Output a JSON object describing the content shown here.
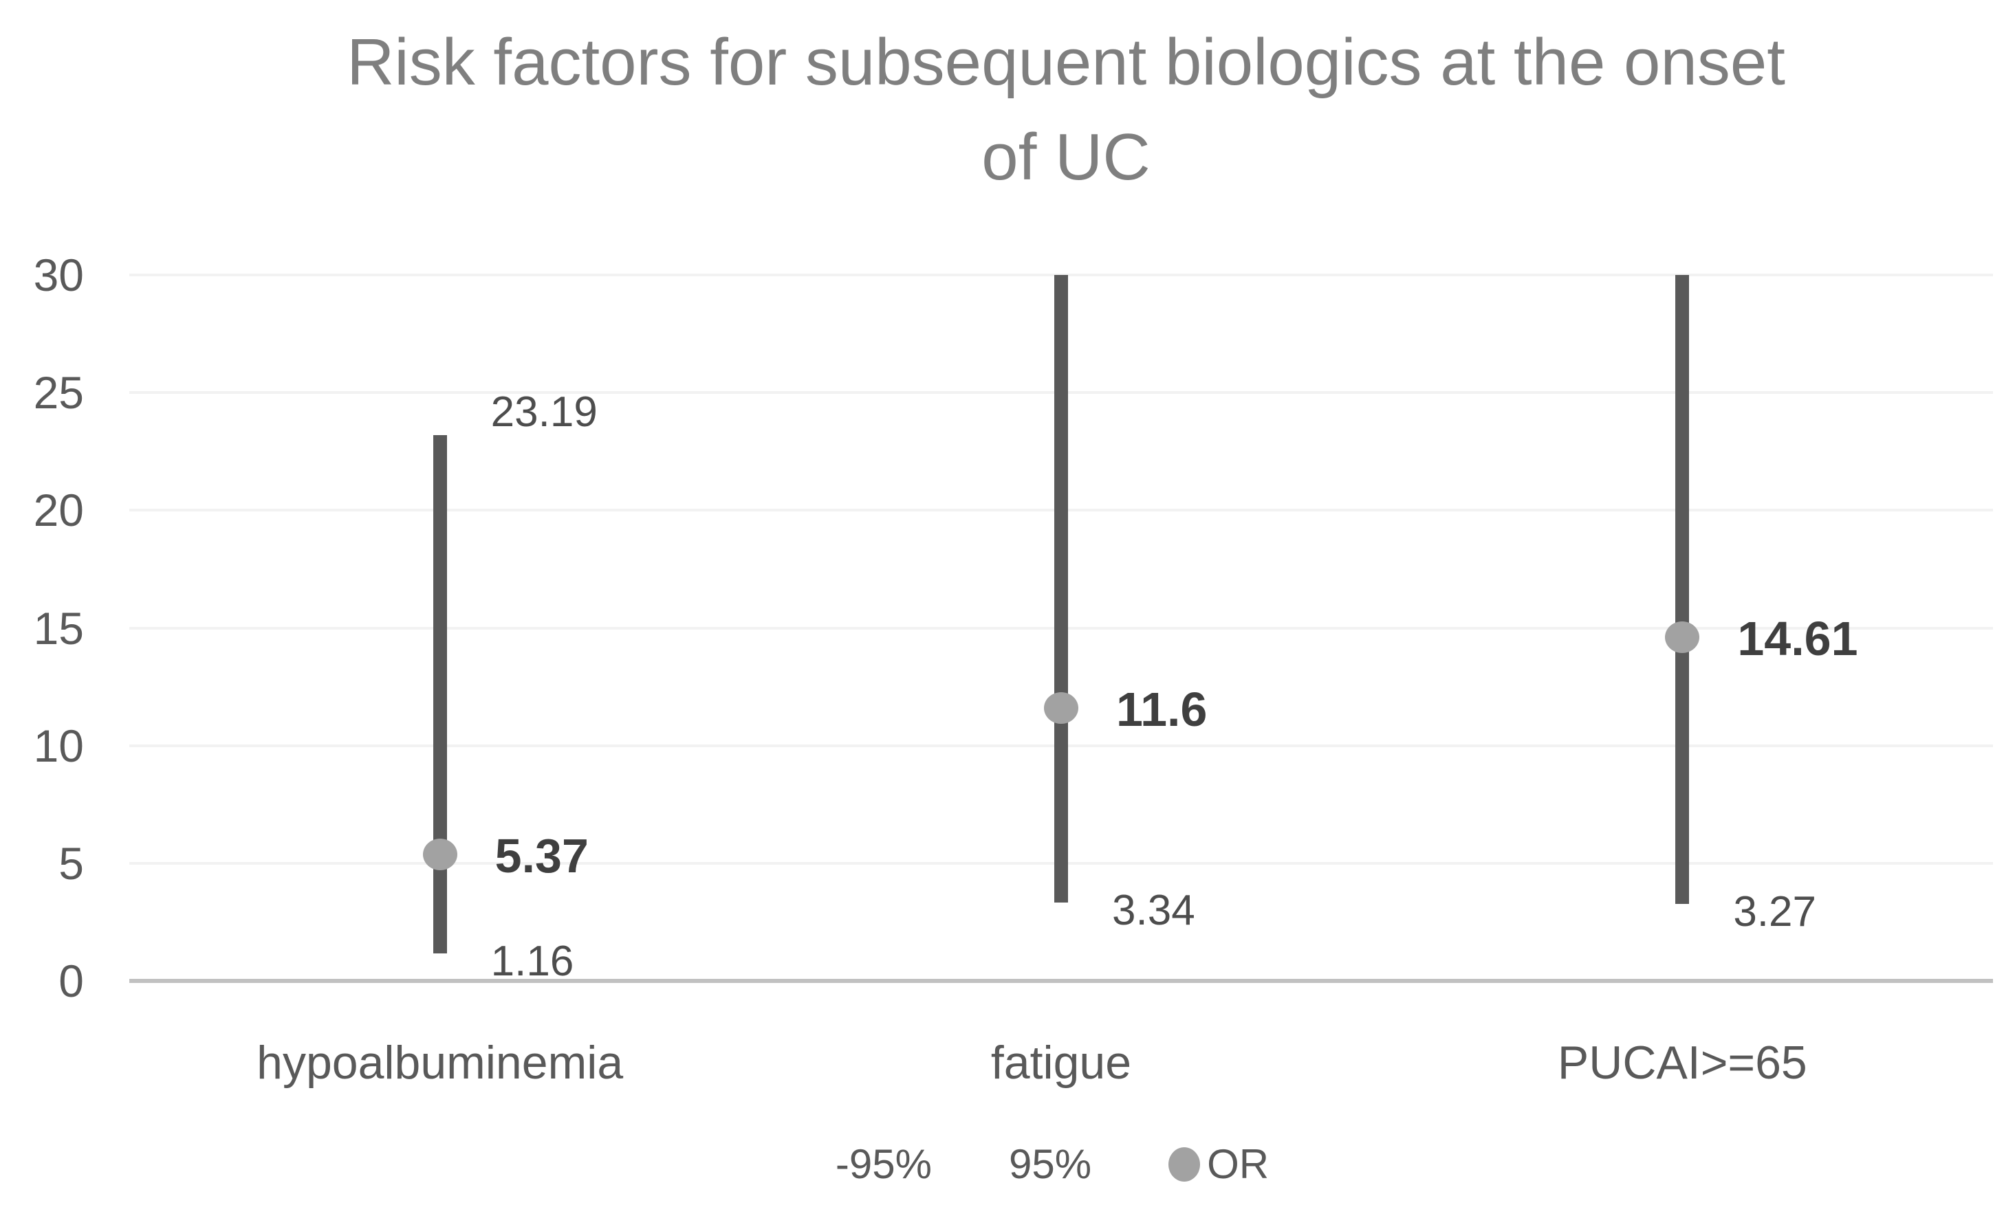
{
  "title": {
    "line1": "Risk factors for subsequent biologics at the onset",
    "line2": "of UC",
    "full": "Risk factors for subsequent biologics at the onset of UC"
  },
  "legend": {
    "items": [
      {
        "label": "-95%",
        "marker": "none"
      },
      {
        "label": "95%",
        "marker": "none"
      },
      {
        "label": "OR",
        "marker": "circle"
      }
    ]
  },
  "colors": {
    "range_bar": "#595959",
    "or_marker": "#a2a2a2",
    "gridline": "#f2f2f2",
    "axis_line": "#c1c1c1",
    "title_text": "#7f7f7f",
    "tick_text": "#595959",
    "data_label_text": "#4d4d4d",
    "or_label_text": "#3f3f3f"
  },
  "chart_data": {
    "type": "scatter",
    "subtype": "high-low confidence-interval bars with OR point (Excel stock style)",
    "title": "Risk factors for subsequent biologics at the onset of UC",
    "categories": [
      "hypoalbuminemia",
      "fatigue",
      "PUCAI>=65"
    ],
    "series": [
      {
        "name": "-95%",
        "role": "ci_lower",
        "values": [
          1.16,
          3.34,
          3.27
        ]
      },
      {
        "name": "95%",
        "role": "ci_upper",
        "values": [
          23.19,
          null,
          null
        ],
        "clipped_at_axis_max": [
          false,
          true,
          true
        ]
      },
      {
        "name": "OR",
        "role": "point",
        "values": [
          5.37,
          11.6,
          14.61
        ]
      }
    ],
    "data_labels": {
      "ci_upper": [
        "23.19",
        "",
        ""
      ],
      "or": [
        "5.37",
        "11.6",
        "14.61"
      ],
      "ci_lower": [
        "1.16",
        "3.34",
        "3.27"
      ]
    },
    "xlabel": "",
    "ylabel": "",
    "ylim": [
      0,
      30
    ],
    "yticks": [
      0,
      5,
      10,
      15,
      20,
      25,
      30
    ],
    "grid": "horizontal",
    "legend_position": "bottom"
  }
}
